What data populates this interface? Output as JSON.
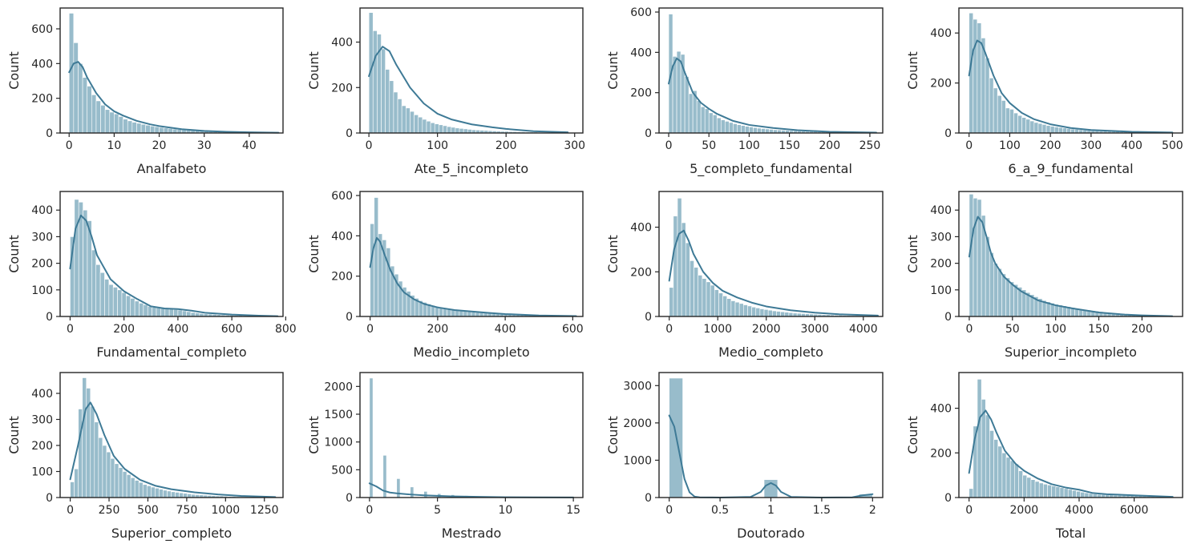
{
  "figure": {
    "rows": 3,
    "cols": 4,
    "bar_color": "#98bccb",
    "bar_edge": "#ffffff",
    "kde_color": "#3e7a96",
    "frame_color": "#262626"
  },
  "chart_data": [
    {
      "type": "histogram",
      "xlabel": "Analfabeto",
      "ylabel": "Count",
      "xlim": [
        -2,
        47.5
      ],
      "ylim": [
        0,
        720
      ],
      "xticks": [
        0,
        10,
        20,
        30,
        40
      ],
      "yticks": [
        0,
        200,
        400,
        600
      ],
      "bin_start": 0,
      "bin_width": 1.0,
      "counts": [
        690,
        520,
        400,
        320,
        270,
        220,
        185,
        160,
        135,
        120,
        110,
        95,
        80,
        70,
        62,
        56,
        50,
        45,
        40,
        36,
        32,
        29,
        26,
        23,
        21,
        19,
        17,
        15,
        14,
        12,
        11,
        10,
        9,
        8,
        7,
        7,
        6,
        6,
        5,
        5,
        4,
        4,
        3,
        3,
        3,
        2,
        2
      ],
      "kde_x": [
        0,
        1,
        2,
        3,
        4,
        6,
        8,
        10,
        12,
        15,
        18,
        20,
        25,
        30,
        35,
        40,
        46.5
      ],
      "kde_y": [
        350,
        400,
        410,
        380,
        320,
        230,
        165,
        125,
        100,
        70,
        50,
        40,
        22,
        12,
        7,
        4,
        2
      ]
    },
    {
      "type": "histogram",
      "xlabel": "Ate_5_incompleto",
      "ylabel": "Count",
      "xlim": [
        -13,
        312
      ],
      "ylim": [
        0,
        550
      ],
      "xticks": [
        0,
        100,
        200,
        300
      ],
      "yticks": [
        0,
        200,
        400
      ],
      "bin_start": 0,
      "bin_width": 6.0,
      "counts": [
        530,
        450,
        435,
        370,
        280,
        230,
        180,
        150,
        120,
        110,
        95,
        80,
        70,
        60,
        52,
        45,
        40,
        36,
        32,
        28,
        25,
        22,
        20,
        18,
        16,
        14,
        13,
        12,
        11,
        10,
        9,
        8,
        7,
        7,
        6,
        6,
        5,
        5,
        4,
        4,
        4,
        3,
        3,
        3,
        2,
        2,
        2,
        2
      ],
      "kde_x": [
        0,
        10,
        20,
        30,
        40,
        60,
        80,
        100,
        120,
        150,
        180,
        200,
        240,
        290
      ],
      "kde_y": [
        250,
        340,
        380,
        360,
        300,
        200,
        130,
        85,
        60,
        38,
        25,
        18,
        8,
        3
      ]
    },
    {
      "type": "histogram",
      "xlabel": "5_completo_fundamental",
      "ylabel": "Count",
      "xlim": [
        -12,
        266
      ],
      "ylim": [
        0,
        620
      ],
      "xticks": [
        0,
        50,
        100,
        150,
        200,
        250
      ],
      "yticks": [
        0,
        200,
        400,
        600
      ],
      "bin_start": 0,
      "bin_width": 5.0,
      "counts": [
        590,
        380,
        405,
        390,
        280,
        195,
        210,
        160,
        130,
        120,
        100,
        90,
        75,
        65,
        58,
        52,
        46,
        41,
        37,
        33,
        30,
        27,
        24,
        22,
        20,
        18,
        16,
        15,
        14,
        13,
        12,
        11,
        10,
        9,
        8,
        8,
        7,
        6,
        6,
        5,
        5,
        4,
        4,
        3,
        3,
        3,
        2,
        2,
        2,
        2,
        1,
        1
      ],
      "kde_x": [
        0,
        5,
        10,
        15,
        20,
        30,
        40,
        50,
        60,
        80,
        100,
        130,
        160,
        200,
        258
      ],
      "kde_y": [
        245,
        330,
        370,
        355,
        300,
        200,
        150,
        120,
        95,
        60,
        40,
        25,
        14,
        6,
        2
      ]
    },
    {
      "type": "histogram",
      "xlabel": "6_a_9_fundamental",
      "ylabel": "Count",
      "xlim": [
        -25,
        525
      ],
      "ylim": [
        0,
        500
      ],
      "xticks": [
        0,
        100,
        200,
        300,
        400,
        500
      ],
      "yticks": [
        0,
        200,
        400
      ],
      "bin_start": 0,
      "bin_width": 10.0,
      "counts": [
        480,
        455,
        440,
        380,
        300,
        220,
        180,
        150,
        130,
        100,
        95,
        80,
        70,
        62,
        55,
        48,
        42,
        38,
        34,
        30,
        27,
        24,
        22,
        20,
        18,
        16,
        15,
        13,
        12,
        11,
        10,
        9,
        8,
        8,
        7,
        6,
        6,
        5,
        5,
        4,
        4,
        4,
        3,
        3,
        3,
        2,
        2,
        2,
        2,
        2
      ],
      "kde_x": [
        0,
        10,
        20,
        30,
        40,
        60,
        80,
        100,
        130,
        160,
        200,
        250,
        300,
        400,
        500
      ],
      "kde_y": [
        230,
        330,
        370,
        360,
        320,
        230,
        160,
        120,
        80,
        55,
        35,
        20,
        12,
        5,
        2
      ]
    },
    {
      "type": "histogram",
      "xlabel": "Fundamental_completo",
      "ylabel": "Count",
      "xlim": [
        -37,
        790
      ],
      "ylim": [
        0,
        470
      ],
      "xticks": [
        0,
        200,
        400,
        600,
        800
      ],
      "yticks": [
        0,
        100,
        200,
        300,
        400
      ],
      "bin_start": 0,
      "bin_width": 16.0,
      "counts": [
        300,
        440,
        430,
        400,
        360,
        250,
        195,
        165,
        140,
        120,
        110,
        100,
        90,
        78,
        68,
        58,
        50,
        44,
        38,
        34,
        32,
        30,
        30,
        28,
        26,
        24,
        21,
        18,
        15,
        13,
        11,
        10,
        9,
        8,
        7,
        6,
        5,
        5,
        4,
        4,
        3,
        3,
        3,
        2,
        2,
        2,
        2,
        1
      ],
      "kde_x": [
        0,
        20,
        40,
        60,
        80,
        100,
        150,
        200,
        250,
        300,
        350,
        400,
        450,
        500,
        600,
        700,
        770
      ],
      "kde_y": [
        180,
        330,
        380,
        360,
        300,
        230,
        140,
        95,
        65,
        38,
        30,
        28,
        22,
        14,
        7,
        3,
        1
      ]
    },
    {
      "type": "histogram",
      "xlabel": "Medio_incompleto",
      "ylabel": "Count",
      "xlim": [
        -30,
        630
      ],
      "ylim": [
        0,
        620
      ],
      "xticks": [
        0,
        200,
        400,
        600
      ],
      "yticks": [
        0,
        200,
        400,
        600
      ],
      "bin_start": 0,
      "bin_width": 12.0,
      "counts": [
        460,
        590,
        410,
        380,
        340,
        250,
        210,
        175,
        145,
        125,
        105,
        90,
        78,
        70,
        62,
        55,
        50,
        45,
        41,
        37,
        34,
        31,
        28,
        26,
        24,
        22,
        20,
        19,
        17,
        16,
        14,
        13,
        12,
        11,
        10,
        9,
        8,
        8,
        7,
        6,
        6,
        5,
        5,
        4,
        4,
        3,
        3,
        3,
        2,
        2,
        2
      ],
      "kde_x": [
        0,
        10,
        20,
        30,
        40,
        60,
        80,
        100,
        130,
        160,
        200,
        250,
        300,
        350,
        400,
        500,
        610
      ],
      "kde_y": [
        245,
        340,
        390,
        370,
        320,
        230,
        165,
        120,
        85,
        62,
        45,
        32,
        25,
        18,
        12,
        5,
        2
      ]
    },
    {
      "type": "histogram",
      "xlabel": "Medio_completo",
      "ylabel": "Count",
      "xlim": [
        -210,
        4400
      ],
      "ylim": [
        0,
        560
      ],
      "xticks": [
        0,
        1000,
        2000,
        3000,
        4000
      ],
      "yticks": [
        0,
        200,
        400
      ],
      "bin_start": 0,
      "bin_width": 85.0,
      "counts": [
        130,
        450,
        530,
        420,
        330,
        250,
        220,
        185,
        170,
        155,
        140,
        120,
        105,
        92,
        80,
        70,
        64,
        58,
        52,
        47,
        42,
        38,
        34,
        31,
        28,
        25,
        23,
        21,
        19,
        17,
        15,
        14,
        13,
        12,
        11,
        10,
        9,
        8,
        8,
        7,
        6,
        6,
        5,
        5,
        4,
        4,
        4,
        3,
        3,
        3,
        2
      ],
      "kde_x": [
        0,
        100,
        200,
        300,
        400,
        500,
        700,
        900,
        1100,
        1400,
        1700,
        2000,
        2500,
        3000,
        3500,
        4300
      ],
      "kde_y": [
        160,
        300,
        370,
        385,
        340,
        280,
        200,
        150,
        115,
        85,
        62,
        45,
        28,
        17,
        10,
        4
      ]
    },
    {
      "type": "histogram",
      "xlabel": "Superior_incompleto",
      "ylabel": "Count",
      "xlim": [
        -12,
        247
      ],
      "ylim": [
        0,
        470
      ],
      "xticks": [
        0,
        50,
        100,
        150,
        200
      ],
      "yticks": [
        0,
        100,
        200,
        300,
        400
      ],
      "bin_start": 0,
      "bin_width": 4.7,
      "counts": [
        460,
        445,
        440,
        380,
        300,
        240,
        200,
        180,
        160,
        145,
        130,
        120,
        110,
        100,
        90,
        82,
        74,
        67,
        60,
        55,
        50,
        46,
        43,
        40,
        37,
        34,
        31,
        28,
        26,
        24,
        22,
        20,
        18,
        16,
        14,
        13,
        12,
        11,
        10,
        9,
        8,
        7,
        6,
        6,
        5,
        5,
        4,
        4,
        3,
        3
      ],
      "kde_x": [
        0,
        5,
        10,
        15,
        20,
        25,
        30,
        40,
        50,
        60,
        80,
        100,
        120,
        150,
        180,
        200,
        235
      ],
      "kde_y": [
        225,
        330,
        375,
        355,
        300,
        240,
        200,
        150,
        120,
        95,
        60,
        42,
        30,
        15,
        7,
        4,
        1
      ]
    },
    {
      "type": "histogram",
      "xlabel": "Superior_completo",
      "ylabel": "Count",
      "xlim": [
        -65,
        1370
      ],
      "ylim": [
        0,
        480
      ],
      "xticks": [
        0,
        250,
        500,
        750,
        1000,
        1250
      ],
      "yticks": [
        0,
        100,
        200,
        300,
        400
      ],
      "bin_start": 0,
      "bin_width": 26.0,
      "counts": [
        60,
        110,
        340,
        460,
        420,
        350,
        290,
        230,
        200,
        175,
        150,
        130,
        115,
        100,
        88,
        76,
        66,
        58,
        50,
        45,
        40,
        36,
        32,
        28,
        25,
        22,
        20,
        18,
        16,
        14,
        12,
        11,
        10,
        9,
        8,
        7,
        6,
        6,
        5,
        4,
        4,
        3,
        3,
        3,
        2,
        2,
        2,
        2,
        1,
        1
      ],
      "kde_x": [
        0,
        50,
        100,
        130,
        170,
        220,
        280,
        350,
        450,
        550,
        650,
        800,
        950,
        1100,
        1320
      ],
      "kde_y": [
        70,
        200,
        340,
        365,
        320,
        240,
        160,
        110,
        68,
        45,
        32,
        20,
        12,
        6,
        2
      ]
    },
    {
      "type": "histogram",
      "xlabel": "Mestrado",
      "ylabel": "Count",
      "xlim": [
        -0.7,
        15.7
      ],
      "ylim": [
        0,
        2250
      ],
      "xticks": [
        0,
        5,
        10,
        15
      ],
      "yticks": [
        0,
        500,
        1000,
        1500,
        2000
      ],
      "bin_start": 0,
      "bin_width": 0.25,
      "counts": [
        2150,
        0,
        0,
        0,
        760,
        0,
        0,
        0,
        340,
        0,
        0,
        0,
        190,
        0,
        0,
        0,
        110,
        0,
        0,
        0,
        70,
        0,
        0,
        0,
        50,
        0,
        0,
        0,
        35,
        0,
        0,
        0,
        25,
        0,
        0,
        0,
        18,
        0,
        0,
        0,
        13,
        0,
        0,
        0,
        10,
        0,
        0,
        0,
        7,
        0,
        0,
        0,
        5,
        0,
        0,
        0,
        4,
        0,
        0,
        0,
        2
      ],
      "kde_x": [
        0,
        0.5,
        1,
        1.5,
        2,
        3,
        4,
        5,
        6,
        8,
        10,
        12,
        15
      ],
      "kde_y": [
        255,
        200,
        125,
        90,
        75,
        55,
        40,
        30,
        22,
        12,
        6,
        3,
        1
      ]
    },
    {
      "type": "histogram",
      "xlabel": "Doutorado",
      "ylabel": "Count",
      "xlim": [
        -0.1,
        2.1
      ],
      "ylim": [
        0,
        3350
      ],
      "xticks": [
        0.0,
        0.5,
        1.0,
        1.5,
        2.0
      ],
      "yticks": [
        0,
        1000,
        2000,
        3000
      ],
      "bin_start": 0,
      "bin_width": 0.1333,
      "counts": [
        3200,
        0,
        0,
        0,
        0,
        0,
        0,
        480,
        0,
        0,
        0,
        0,
        0,
        0,
        90
      ],
      "kde_x": [
        0,
        0.05,
        0.1,
        0.15,
        0.2,
        0.25,
        0.3,
        0.5,
        0.8,
        0.9,
        0.95,
        1.0,
        1.05,
        1.1,
        1.2,
        1.5,
        1.8,
        1.9,
        2.0
      ],
      "kde_y": [
        2200,
        1900,
        1200,
        500,
        140,
        25,
        5,
        0,
        15,
        150,
        320,
        390,
        320,
        150,
        15,
        0,
        5,
        60,
        90
      ]
    },
    {
      "type": "histogram",
      "xlabel": "Total",
      "ylabel": "Count",
      "xlim": [
        -370,
        7760
      ],
      "ylim": [
        0,
        560
      ],
      "xticks": [
        0,
        2000,
        4000,
        6000
      ],
      "yticks": [
        0,
        200,
        400
      ],
      "bin_start": 0,
      "bin_width": 150.0,
      "counts": [
        40,
        320,
        530,
        440,
        370,
        300,
        260,
        230,
        200,
        180,
        165,
        150,
        120,
        100,
        90,
        80,
        72,
        65,
        60,
        56,
        52,
        48,
        44,
        40,
        36,
        32,
        28,
        24,
        21,
        18,
        16,
        14,
        13,
        12,
        12,
        11,
        11,
        10,
        10,
        9,
        8,
        7,
        6,
        5,
        5,
        4,
        4,
        3,
        3,
        2
      ],
      "kde_x": [
        0,
        200,
        400,
        600,
        800,
        1000,
        1300,
        1700,
        2000,
        2500,
        3000,
        3500,
        4000,
        4500,
        5000,
        6000,
        7400
      ],
      "kde_y": [
        110,
        260,
        360,
        390,
        350,
        290,
        210,
        150,
        120,
        85,
        60,
        45,
        35,
        20,
        15,
        10,
        3
      ]
    }
  ]
}
